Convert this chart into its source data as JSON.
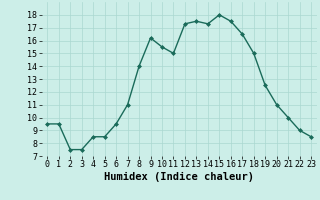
{
  "x": [
    0,
    1,
    2,
    3,
    4,
    5,
    6,
    7,
    8,
    9,
    10,
    11,
    12,
    13,
    14,
    15,
    16,
    17,
    18,
    19,
    20,
    21,
    22,
    23
  ],
  "y": [
    9.5,
    9.5,
    7.5,
    7.5,
    8.5,
    8.5,
    9.5,
    11.0,
    14.0,
    16.2,
    15.5,
    15.0,
    17.3,
    17.5,
    17.3,
    18.0,
    17.5,
    16.5,
    15.0,
    12.5,
    11.0,
    10.0,
    9.0,
    8.5
  ],
  "xlabel": "Humidex (Indice chaleur)",
  "ylim": [
    7,
    19
  ],
  "xlim": [
    -0.5,
    23.5
  ],
  "yticks": [
    7,
    8,
    9,
    10,
    11,
    12,
    13,
    14,
    15,
    16,
    17,
    18
  ],
  "xticks": [
    0,
    1,
    2,
    3,
    4,
    5,
    6,
    7,
    8,
    9,
    10,
    11,
    12,
    13,
    14,
    15,
    16,
    17,
    18,
    19,
    20,
    21,
    22,
    23
  ],
  "xtick_labels": [
    "0",
    "1",
    "2",
    "3",
    "4",
    "5",
    "6",
    "7",
    "8",
    "9",
    "10",
    "11",
    "12",
    "13",
    "14",
    "15",
    "16",
    "17",
    "18",
    "19",
    "20",
    "21",
    "22",
    "23"
  ],
  "line_color": "#1a6b5a",
  "marker": "D",
  "marker_size": 2.0,
  "bg_color": "#cceee8",
  "grid_color": "#aad8d0",
  "xlabel_fontsize": 7.5,
  "tick_fontsize": 6.0,
  "linewidth": 1.0
}
